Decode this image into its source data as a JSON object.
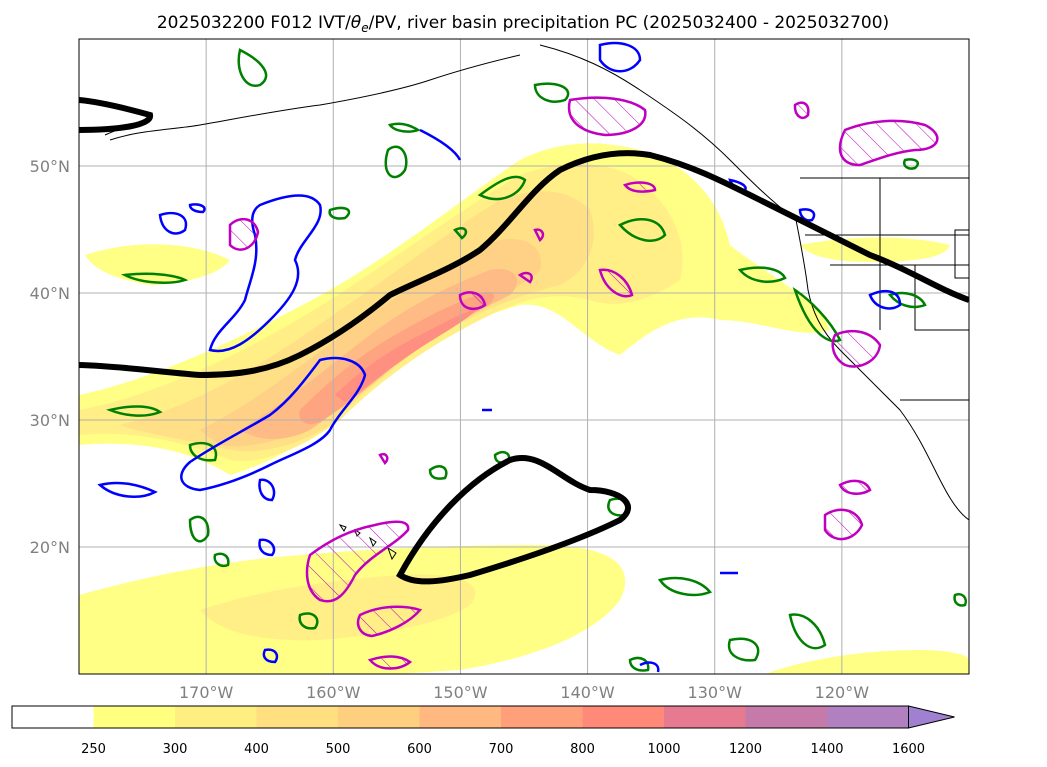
{
  "title": "2025032200 F012 IVT/θe/PV, river basin precipitation PC (2025032400 - 2025032700)",
  "title_parts": {
    "prefix": "2025032200 F012 IVT/",
    "theta": "θ",
    "theta_sub": "e",
    "suffix": "/PV, river basin precipitation PC (2025032400 - 2025032700)"
  },
  "map": {
    "lon_range": [
      -180,
      -110
    ],
    "lat_range": [
      10,
      60
    ],
    "lon_ticks": [
      "170°W",
      "160°W",
      "150°W",
      "140°W",
      "130°W",
      "120°W"
    ],
    "lon_tick_values": [
      -170,
      -160,
      -150,
      -140,
      -130,
      -120
    ],
    "lat_ticks": [
      "50°N",
      "40°N",
      "30°N",
      "20°N"
    ],
    "lat_tick_values": [
      50,
      40,
      30,
      20
    ],
    "gridlines": true,
    "colors": {
      "theta_e_contour": "#000000",
      "pv_blue": "#0000ff",
      "pv_green": "#008000",
      "precip_magenta": "#bf00bf",
      "coastline": "#000000"
    }
  },
  "colorbar": {
    "levels": [
      "250",
      "300",
      "400",
      "500",
      "600",
      "700",
      "800",
      "1000",
      "1200",
      "1400",
      "1600"
    ],
    "colors": [
      "#ffffff",
      "#ffff80",
      "#ffef80",
      "#ffdf80",
      "#ffcf80",
      "#ffb880",
      "#ffa07a",
      "#ff8a7a",
      "#e67a90",
      "#c67aaa",
      "#b080c0",
      "#a080d0"
    ],
    "extend": "max"
  }
}
